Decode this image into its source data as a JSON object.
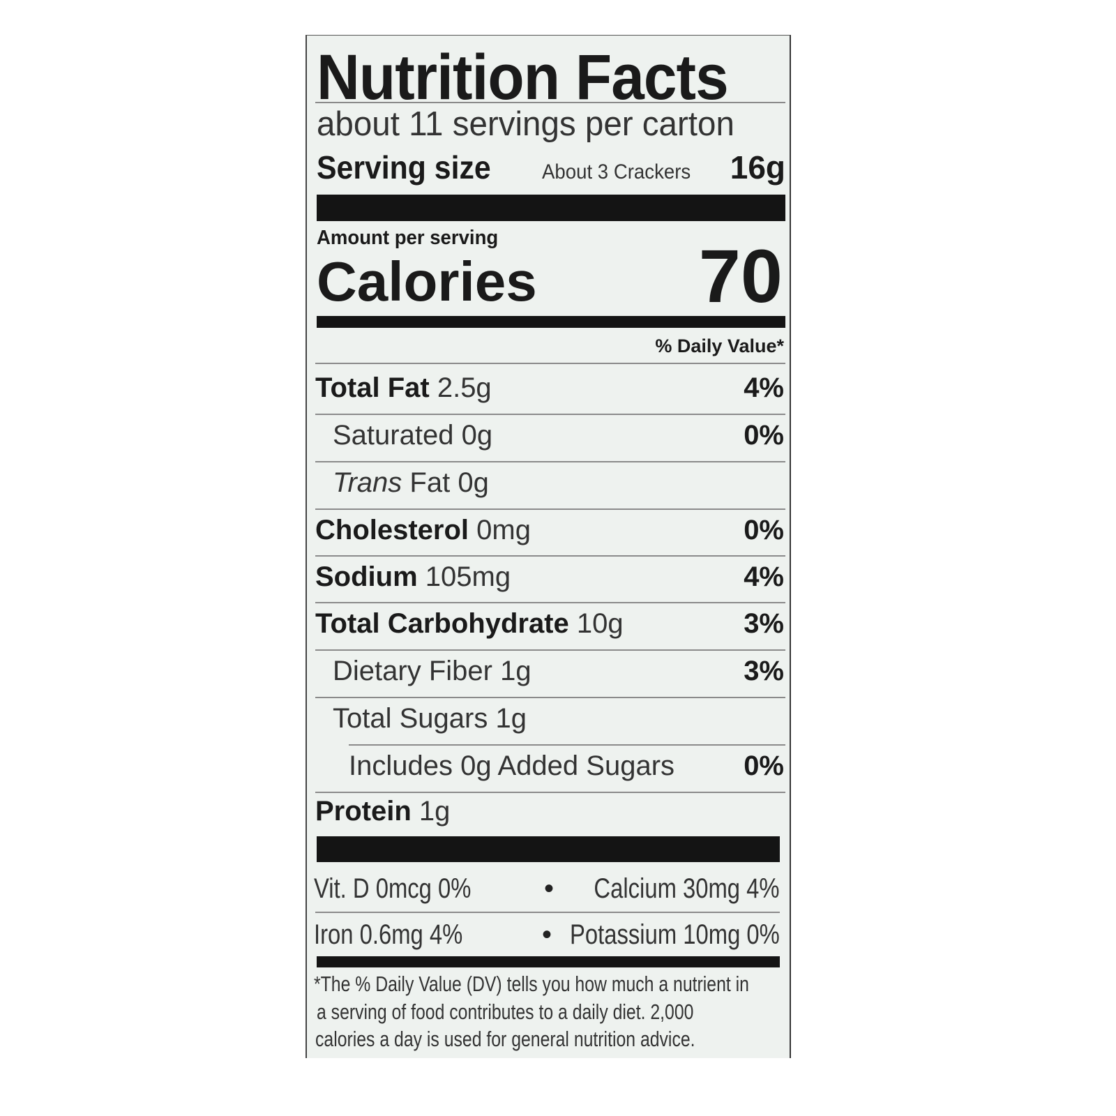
{
  "title": "Nutrition Facts",
  "servings_per_container": "about 11 servings per carton",
  "serving_size": {
    "label": "Serving size",
    "description": "About 3 Crackers",
    "amount": "16g"
  },
  "amount_per_serving": "Amount per serving",
  "calories": {
    "label": "Calories",
    "value": "70"
  },
  "daily_value_header": "% Daily Value*",
  "nutrients": [
    {
      "name": "Total Fat",
      "amount": "2.5g",
      "dv": "4%"
    },
    {
      "name": "Saturated",
      "amount": "0g",
      "dv": "0%"
    },
    {
      "name": "Trans",
      "name_suffix": "Fat",
      "amount": "0g",
      "dv": ""
    },
    {
      "name": "Cholesterol",
      "amount": "0mg",
      "dv": "0%"
    },
    {
      "name": "Sodium",
      "amount": "105mg",
      "dv": "4%"
    },
    {
      "name": "Total Carbohydrate",
      "amount": "10g",
      "dv": "3%"
    },
    {
      "name": "Dietary Fiber",
      "amount": "1g",
      "dv": "3%"
    },
    {
      "name": "Total Sugars",
      "amount": "1g",
      "dv": ""
    },
    {
      "name": "Includes 0g Added Sugars",
      "amount": "",
      "dv": "0%"
    },
    {
      "name": "Protein",
      "amount": "1g",
      "dv": ""
    }
  ],
  "vitamins": [
    {
      "left": "Vit. D 0mcg 0%",
      "right": "Calcium 30mg 4%"
    },
    {
      "left": "Iron 0.6mg 4%",
      "right": "Potassium 10mg 0%"
    }
  ],
  "bullet": "•",
  "footnote": [
    "*The % Daily Value (DV) tells you how much a nutrient in",
    "a serving of food contributes to a daily diet. 2,000",
    "calories a day is used for general nutrition advice."
  ]
}
